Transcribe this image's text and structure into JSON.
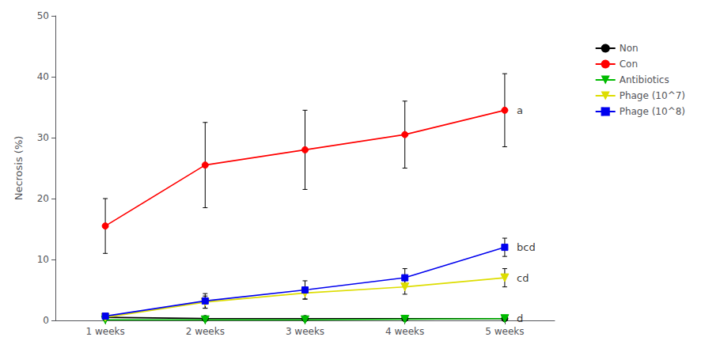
{
  "chart_data": {
    "type": "line",
    "x": [
      1,
      2,
      3,
      4,
      5
    ],
    "xlim": [
      0.5,
      5.5
    ],
    "xticks": [
      {
        "value": 1,
        "label": "1 weeks"
      },
      {
        "value": 2,
        "label": "2 weeks"
      },
      {
        "value": 3,
        "label": "3 weeks"
      },
      {
        "value": 4,
        "label": "4 weeks"
      },
      {
        "value": 5,
        "label": "5 weeks"
      }
    ],
    "ylabel": "Necrosis (%)",
    "ylim": [
      0,
      50
    ],
    "yticks": [
      0,
      10,
      20,
      30,
      40,
      50
    ],
    "grid": false,
    "legend": "right",
    "series": [
      {
        "name": "Non",
        "color": "#000000",
        "marker": "circle",
        "values": [
          0.5,
          0.3,
          0.3,
          0.3,
          0.3
        ],
        "errors": [
          0.2,
          0.1,
          0.1,
          0.1,
          0.1
        ]
      },
      {
        "name": "Con",
        "color": "#FF0000",
        "marker": "circle",
        "values": [
          15.5,
          25.5,
          28.0,
          30.5,
          34.5
        ],
        "errors": [
          4.5,
          7.0,
          6.5,
          5.5,
          6.0
        ]
      },
      {
        "name": "Antibiotics",
        "color": "#00BB00",
        "marker": "triangle_down",
        "values": [
          0.1,
          0.1,
          0.1,
          0.2,
          0.3
        ],
        "errors": [
          0.05,
          0.05,
          0.05,
          0.1,
          0.1
        ]
      },
      {
        "name": "Phage (10^7)",
        "color": "#DDDD00",
        "marker": "triangle_down",
        "values": [
          0.5,
          3.0,
          4.5,
          5.5,
          7.0
        ],
        "errors": [
          0.2,
          1.0,
          1.0,
          1.2,
          1.5
        ]
      },
      {
        "name": "Phage (10^8)",
        "color": "#0000EE",
        "marker": "square",
        "values": [
          0.7,
          3.2,
          5.0,
          7.0,
          12.0
        ],
        "errors": [
          0.2,
          1.2,
          1.5,
          1.5,
          1.5
        ]
      }
    ],
    "annotations": [
      {
        "text": "a",
        "x": 5.12,
        "y": 34.5
      },
      {
        "text": "bcd",
        "x": 5.12,
        "y": 12.0
      },
      {
        "text": "cd",
        "x": 5.12,
        "y": 7.0
      },
      {
        "text": "d",
        "x": 5.12,
        "y": 0.3
      }
    ]
  }
}
